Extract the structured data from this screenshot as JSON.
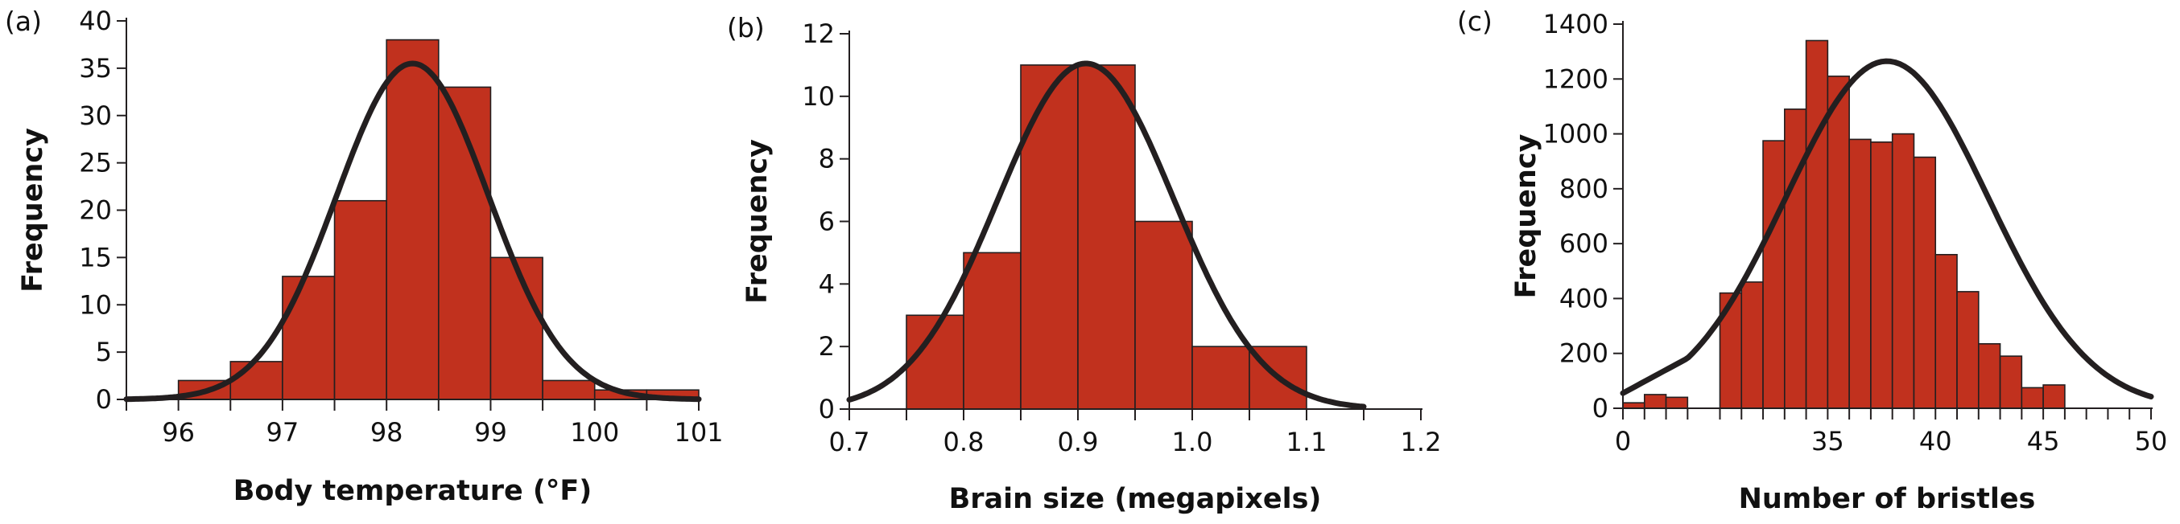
{
  "chart_data": [
    {
      "type": "bar",
      "panel_label": "(a)",
      "xlabel": "Body temperature (°F)",
      "ylabel": "Frequency",
      "x_ticks": [
        "96",
        "97",
        "98",
        "99",
        "100",
        "101"
      ],
      "y_ticks": [
        "0",
        "5",
        "10",
        "15",
        "20",
        "25",
        "30",
        "35",
        "40"
      ],
      "xlim": [
        95.5,
        101
      ],
      "ylim": [
        0,
        40
      ],
      "bins": [
        {
          "start": 96.0,
          "end": 96.5,
          "value": 2
        },
        {
          "start": 96.5,
          "end": 97.0,
          "value": 4
        },
        {
          "start": 97.0,
          "end": 97.5,
          "value": 13
        },
        {
          "start": 97.5,
          "end": 98.0,
          "value": 21
        },
        {
          "start": 98.0,
          "end": 98.5,
          "value": 38
        },
        {
          "start": 98.5,
          "end": 99.0,
          "value": 33
        },
        {
          "start": 99.0,
          "end": 99.5,
          "value": 15
        },
        {
          "start": 99.5,
          "end": 100.0,
          "value": 2
        },
        {
          "start": 100.0,
          "end": 100.5,
          "value": 1
        },
        {
          "start": 100.5,
          "end": 101.0,
          "value": 1
        }
      ],
      "curve": {
        "type": "normal",
        "mean": 98.25,
        "sd": 0.73,
        "peak": 35.5,
        "x_range": [
          95.5,
          101
        ]
      },
      "colors": {
        "bar": "#c1311e",
        "curve": "#231f20"
      }
    },
    {
      "type": "bar",
      "panel_label": "(b)",
      "xlabel": "Brain size (megapixels)",
      "ylabel": "Frequency",
      "x_ticks": [
        "0.7",
        "0.8",
        "0.9",
        "1.0",
        "1.1",
        "1.2"
      ],
      "y_ticks": [
        "0",
        "2",
        "4",
        "6",
        "8",
        "10",
        "12"
      ],
      "xlim": [
        0.7,
        1.2
      ],
      "ylim": [
        0,
        12
      ],
      "bins": [
        {
          "start": 0.75,
          "end": 0.8,
          "value": 3
        },
        {
          "start": 0.8,
          "end": 0.85,
          "value": 5
        },
        {
          "start": 0.85,
          "end": 0.9,
          "value": 11
        },
        {
          "start": 0.9,
          "end": 0.95,
          "value": 11
        },
        {
          "start": 0.95,
          "end": 1.0,
          "value": 6
        },
        {
          "start": 1.0,
          "end": 1.05,
          "value": 2
        },
        {
          "start": 1.05,
          "end": 1.1,
          "value": 2
        }
      ],
      "curve": {
        "type": "normal",
        "mean": 0.907,
        "sd": 0.077,
        "peak": 11.05,
        "x_range": [
          0.7,
          1.15
        ]
      },
      "colors": {
        "bar": "#c1311e",
        "curve": "#231f20"
      }
    },
    {
      "type": "bar",
      "panel_label": "(c)",
      "xlabel": "Number of bristles",
      "ylabel": "Frequency",
      "x_ticks": [
        "0",
        "35",
        "40",
        "45",
        "50"
      ],
      "y_ticks": [
        "0",
        "200",
        "400",
        "600",
        "800",
        "1000",
        "1200",
        "1400"
      ],
      "x_tick_positions": [
        0,
        35,
        40,
        45,
        50
      ],
      "xlim": [
        0,
        50
      ],
      "ylim": [
        0,
        1400
      ],
      "axis_break": {
        "from": 0,
        "to": 28.5,
        "display_width_units": 1.5
      },
      "bins": [
        {
          "start": 0,
          "end": 1,
          "value": 20
        },
        {
          "start": 1,
          "end": 2,
          "value": 50
        },
        {
          "start": 2,
          "end": 3,
          "value": 40
        },
        {
          "start": 30,
          "end": 31,
          "value": 420
        },
        {
          "start": 31,
          "end": 32,
          "value": 460
        },
        {
          "start": 32,
          "end": 33,
          "value": 975
        },
        {
          "start": 33,
          "end": 34,
          "value": 1090
        },
        {
          "start": 34,
          "end": 35,
          "value": 1340
        },
        {
          "start": 35,
          "end": 36,
          "value": 1210
        },
        {
          "start": 36,
          "end": 37,
          "value": 980
        },
        {
          "start": 37,
          "end": 38,
          "value": 970
        },
        {
          "start": 38,
          "end": 39,
          "value": 1000
        },
        {
          "start": 39,
          "end": 40,
          "value": 915
        },
        {
          "start": 40,
          "end": 41,
          "value": 560
        },
        {
          "start": 41,
          "end": 42,
          "value": 425
        },
        {
          "start": 42,
          "end": 43,
          "value": 235
        },
        {
          "start": 43,
          "end": 44,
          "value": 190
        },
        {
          "start": 44,
          "end": 45,
          "value": 75
        },
        {
          "start": 45,
          "end": 46,
          "value": 85
        }
      ],
      "curve": {
        "type": "normal",
        "mean": 37.75,
        "sd": 4.7,
        "peak": 1265,
        "x_range": [
          0,
          50
        ]
      },
      "colors": {
        "bar": "#c1311e",
        "curve": "#231f20"
      }
    }
  ]
}
